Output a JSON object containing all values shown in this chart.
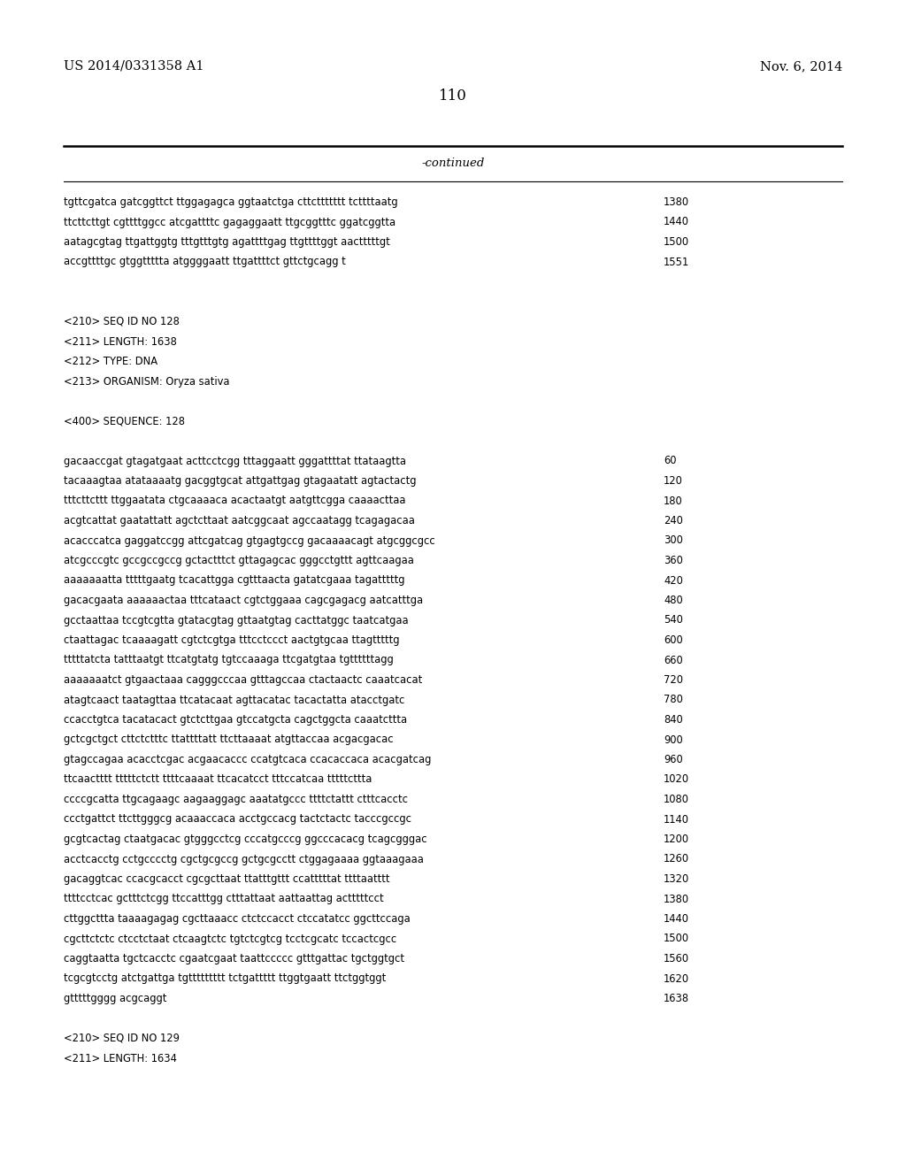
{
  "background_color": "#ffffff",
  "header_left": "US 2014/0331358 A1",
  "header_right": "Nov. 6, 2014",
  "page_number": "110",
  "continued_text": "-continued",
  "monospace_font": "Courier New",
  "serif_font": "DejaVu Serif",
  "lines": [
    {
      "text": "tgttcgatca gatcggttct ttggagagca ggtaatctga cttcttttttt tcttttaatg",
      "num": "1380",
      "type": "seq"
    },
    {
      "text": "ttcttcttgt cgttttggcc atcgattttc gagaggaatt ttgcggtttc ggatcggtta",
      "num": "1440",
      "type": "seq"
    },
    {
      "text": "aatagcgtag ttgattggtg tttgtttgtg agattttgag ttgttttggt aactttttgt",
      "num": "1500",
      "type": "seq"
    },
    {
      "text": "accgttttgc gtggttttta atggggaatt ttgattttct gttctgcagg t",
      "num": "1551",
      "type": "seq"
    },
    {
      "text": "",
      "type": "blank"
    },
    {
      "text": "",
      "type": "blank"
    },
    {
      "text": "<210> SEQ ID NO 128",
      "type": "meta"
    },
    {
      "text": "<211> LENGTH: 1638",
      "type": "meta"
    },
    {
      "text": "<212> TYPE: DNA",
      "type": "meta"
    },
    {
      "text": "<213> ORGANISM: Oryza sativa",
      "type": "meta"
    },
    {
      "text": "",
      "type": "blank"
    },
    {
      "text": "<400> SEQUENCE: 128",
      "type": "meta"
    },
    {
      "text": "",
      "type": "blank"
    },
    {
      "text": "gacaaccgat gtagatgaat acttcctcgg tttaggaatt gggattttat ttataagtta",
      "num": "60",
      "type": "seq"
    },
    {
      "text": "tacaaagtaa atataaaatg gacggtgcat attgattgag gtagaatatt agtactactg",
      "num": "120",
      "type": "seq"
    },
    {
      "text": "tttcttcttt ttggaatata ctgcaaaaca acactaatgt aatgttcgga caaaacttaa",
      "num": "180",
      "type": "seq"
    },
    {
      "text": "acgtcattat gaatattatt agctcttaat aatcggcaat agccaatagg tcagagacaa",
      "num": "240",
      "type": "seq"
    },
    {
      "text": "acacccatca gaggatccgg attcgatcag gtgagtgccg gacaaaacagt atgcggcgcc",
      "num": "300",
      "type": "seq"
    },
    {
      "text": "atcgcccgtc gccgccgccg gctactttct gttagagcac gggcctgttt agttcaagaa",
      "num": "360",
      "type": "seq"
    },
    {
      "text": "aaaaaaatta tttttgaatg tcacattgga cgtttaacta gatatcgaaa tagatttttg",
      "num": "420",
      "type": "seq"
    },
    {
      "text": "gacacgaata aaaaaactaa tttcataact cgtctggaaa cagcgagacg aatcatttga",
      "num": "480",
      "type": "seq"
    },
    {
      "text": "gcctaattaa tccgtcgtta gtatacgtag gttaatgtag cacttatggc taatcatgaa",
      "num": "540",
      "type": "seq"
    },
    {
      "text": "ctaattagac tcaaaagatt cgtctcgtga tttcctccct aactgtgcaa ttagtttttg",
      "num": "600",
      "type": "seq"
    },
    {
      "text": "tttttatcta tatttaatgt ttcatgtatg tgtccaaaga ttcgatgtaa tgttttttagg",
      "num": "660",
      "type": "seq"
    },
    {
      "text": "aaaaaaatct gtgaactaaa cagggcccaa gtttagccaa ctactaactc caaatcacat",
      "num": "720",
      "type": "seq"
    },
    {
      "text": "atagtcaact taatagttaa ttcatacaat agttacatac tacactatta atacctgatc",
      "num": "780",
      "type": "seq"
    },
    {
      "text": "ccacctgtca tacatacact gtctcttgaa gtccatgcta cagctggcta caaatcttta",
      "num": "840",
      "type": "seq"
    },
    {
      "text": "gctcgctgct cttctctttc ttattttatt ttcttaaaat atgttaccaa acgacgacac",
      "num": "900",
      "type": "seq"
    },
    {
      "text": "gtagccagaa acacctcgac acgaacaccc ccatgtcaca ccacaccaca acacgatcag",
      "num": "960",
      "type": "seq"
    },
    {
      "text": "ttcaactttt tttttctctt ttttcaaaat ttcacatcct tttccatcaa tttttcttta",
      "num": "1020",
      "type": "seq"
    },
    {
      "text": "ccccgcatta ttgcagaagc aagaaggagc aaatatgccc ttttctattt ctttcacctc",
      "num": "1080",
      "type": "seq"
    },
    {
      "text": "ccctgattct ttcttgggcg acaaaccaca acctgccacg tactctactc tacccgccgc",
      "num": "1140",
      "type": "seq"
    },
    {
      "text": "gcgtcactag ctaatgacac gtgggcctcg cccatgcccg ggcccacacg tcagcgggac",
      "num": "1200",
      "type": "seq"
    },
    {
      "text": "acctcacctg cctgcccctg cgctgcgccg gctgcgcctt ctggagaaaa ggtaaagaaa",
      "num": "1260",
      "type": "seq"
    },
    {
      "text": "gacaggtcac ccacgcacct cgcgcttaat ttatttgttt ccatttttat ttttaatttt",
      "num": "1320",
      "type": "seq"
    },
    {
      "text": "ttttcctcac gctttctcgg ttccatttgg ctttattaat aattaattag actttttcct",
      "num": "1380",
      "type": "seq"
    },
    {
      "text": "cttggcttta taaaagagag cgcttaaacc ctctccacct ctccatatcc ggcttccaga",
      "num": "1440",
      "type": "seq"
    },
    {
      "text": "cgcttctctc ctcctctaat ctcaagtctc tgtctcgtcg tcctcgcatc tccactcgcc",
      "num": "1500",
      "type": "seq"
    },
    {
      "text": "caggtaatta tgctcacctc cgaatcgaat taattccccc gtttgattac tgctggtgct",
      "num": "1560",
      "type": "seq"
    },
    {
      "text": "tcgcgtcctg atctgattga tgttttttttt tctgattttt ttggtgaatt ttctggtggt",
      "num": "1620",
      "type": "seq"
    },
    {
      "text": "gtttttgggg acgcaggt",
      "num": "1638",
      "type": "seq"
    },
    {
      "text": "",
      "type": "blank"
    },
    {
      "text": "<210> SEQ ID NO 129",
      "type": "meta"
    },
    {
      "text": "<211> LENGTH: 1634",
      "type": "meta"
    }
  ]
}
